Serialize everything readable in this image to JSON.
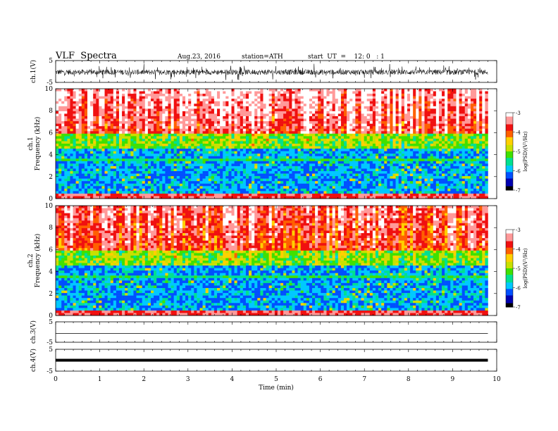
{
  "header": {
    "title": "VLF  Spectra",
    "date": "Aug.23, 2016",
    "station": "station=ATH",
    "start": "start  UT  =    12: 0   : 1"
  },
  "colors": {
    "spectrogram_scale": [
      "#000000",
      "#0000b0",
      "#0050ff",
      "#00c8ff",
      "#00e090",
      "#40e000",
      "#c8e000",
      "#ffd000",
      "#ff6000",
      "#f01010",
      "#ff9999",
      "#ffffff"
    ]
  },
  "chart_data": [
    {
      "type": "line",
      "ylabel": "ch.1(V)",
      "yticks": [
        "5",
        "-5"
      ],
      "ylim": [
        -5,
        5
      ],
      "description_values": {
        "baseline": -0.3,
        "noise_amplitude": 1.2
      },
      "xlim": [
        0,
        10
      ],
      "data_end": 9.8
    },
    {
      "type": "heatmap",
      "ylabel": "ch.1\nFrequency  (kHz)",
      "ylabel_line1": "ch.1",
      "ylabel_line2": "Frequency  (kHz)",
      "yticks": [
        "0",
        "2",
        "4",
        "6",
        "8",
        "10"
      ],
      "ylim": [
        0,
        10
      ],
      "xlim": [
        0,
        10
      ],
      "data_end": 9.8,
      "colorbar": {
        "label": "log(PSD)(V²/Hz)",
        "ticks": [
          "-3",
          "-4",
          "-5",
          "-6",
          "-7"
        ],
        "range": [
          -7,
          -3
        ]
      }
    },
    {
      "type": "heatmap",
      "ylabel_line1": "ch.2",
      "ylabel_line2": "Frequency  (kHz)",
      "yticks": [
        "0",
        "2",
        "4",
        "6",
        "8",
        "10"
      ],
      "ylim": [
        0,
        10
      ],
      "xlim": [
        0,
        10
      ],
      "data_end": 9.8,
      "colorbar": {
        "label": "log(PSD)(V²/Hz)",
        "ticks": [
          "-3",
          "-4",
          "-5",
          "-6",
          "-7"
        ],
        "range": [
          -7,
          -3
        ]
      }
    },
    {
      "type": "line",
      "ylabel": "ch.3(V)",
      "yticks": [
        "5",
        "-5"
      ],
      "ylim": [
        -5,
        5
      ],
      "xlim": [
        0,
        10
      ],
      "data_end": 9.8
    },
    {
      "type": "line",
      "ylabel": "ch.4(V)",
      "yticks": [
        "5",
        "-5"
      ],
      "ylim": [
        -5,
        5
      ],
      "xlim": [
        0,
        10
      ],
      "data_end": 9.8,
      "xlabel": "Time  (min)",
      "xticks": [
        "0",
        "1",
        "2",
        "3",
        "4",
        "5",
        "6",
        "7",
        "8",
        "9",
        "10"
      ]
    }
  ]
}
